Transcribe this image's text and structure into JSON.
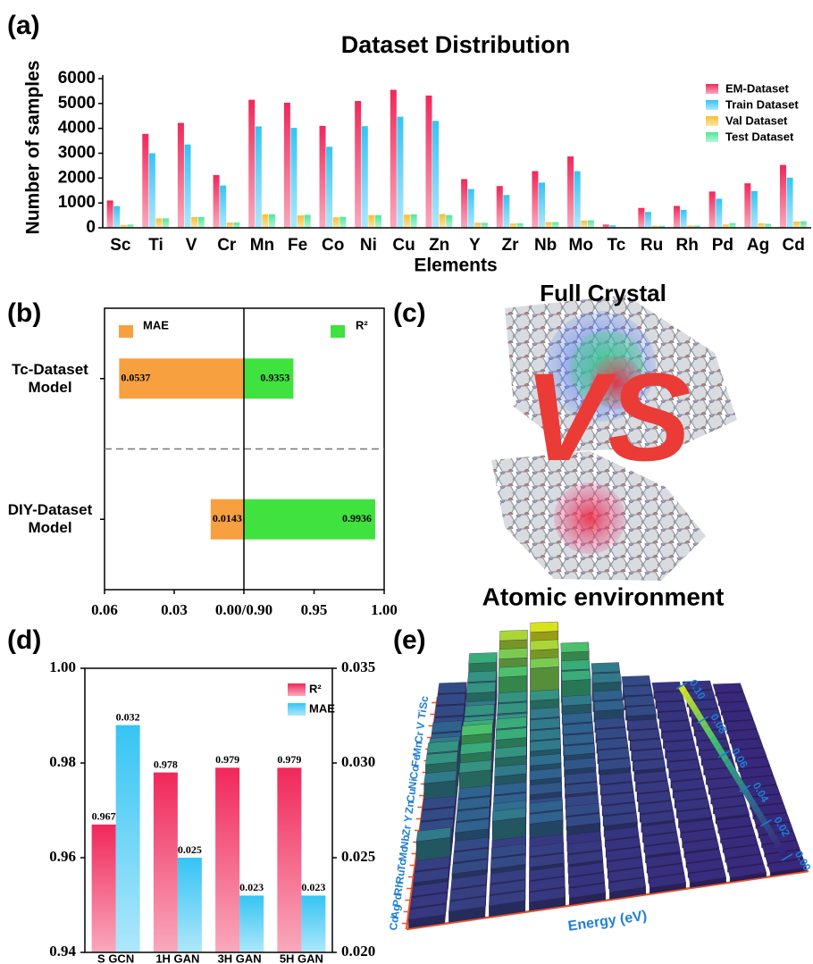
{
  "chart_data": [
    {
      "type": "grouped_bar",
      "panel_label": "(a)",
      "title": "Dataset Distribution",
      "xlabel": "Elements",
      "ylabel": "Number of samples",
      "categories": [
        "Sc",
        "Ti",
        "V",
        "Cr",
        "Mn",
        "Fe",
        "Co",
        "Ni",
        "Cu",
        "Zn",
        "Y",
        "Zr",
        "Nb",
        "Mo",
        "Tc",
        "Ru",
        "Rh",
        "Pd",
        "Ag",
        "Cd"
      ],
      "series": [
        {
          "name": "EM-Dataset",
          "color": "#f0285a",
          "values": [
            1100,
            3780,
            4220,
            2120,
            5150,
            5030,
            4100,
            5100,
            5550,
            5320,
            1960,
            1680,
            2280,
            2870,
            130,
            800,
            880,
            1460,
            1790,
            2530
          ]
        },
        {
          "name": "Train Dataset",
          "color": "#35c4f4",
          "values": [
            870,
            3000,
            3350,
            1700,
            4080,
            4020,
            3260,
            4090,
            4470,
            4300,
            1560,
            1320,
            1820,
            2280,
            100,
            640,
            720,
            1170,
            1480,
            2020
          ]
        },
        {
          "name": "Val Dataset",
          "color": "#f6c033",
          "values": [
            110,
            380,
            430,
            210,
            540,
            500,
            420,
            510,
            530,
            550,
            200,
            170,
            230,
            290,
            15,
            80,
            90,
            130,
            180,
            250
          ]
        },
        {
          "name": "Test Dataset",
          "color": "#4fe69a",
          "values": [
            130,
            380,
            430,
            210,
            540,
            520,
            440,
            510,
            540,
            510,
            200,
            180,
            230,
            300,
            15,
            80,
            90,
            190,
            160,
            260
          ]
        }
      ],
      "ylim": [
        0,
        6000
      ],
      "yticks": [
        0,
        1000,
        2000,
        3000,
        4000,
        5000,
        6000
      ],
      "legend": "upper right"
    },
    {
      "type": "diverging_bar",
      "panel_label": "(b)",
      "categories": [
        "Tc-Dataset Model",
        "DIY-Dataset Model"
      ],
      "series": [
        {
          "name": "MAE",
          "color": "#f7a040",
          "values": [
            0.0537,
            0.0143
          ],
          "xlim": [
            0.06,
            0
          ],
          "xticks": [
            0.06,
            0.03,
            {
              "value": 0,
              "label": "0.00/0.90"
            }
          ]
        },
        {
          "name": "R²",
          "color": "#3fe23f",
          "values": [
            0.9353,
            0.9936
          ],
          "xlim": [
            0.9,
            1
          ],
          "xticks": [
            0.95,
            {
              "value": 1,
              "label": "1.00"
            }
          ]
        }
      ]
    },
    {
      "type": "dual_bar",
      "panel_label": "(d)",
      "categories": [
        "S GCN",
        "1H GAN",
        "3H GAN",
        "5H GAN"
      ],
      "series": [
        {
          "name": "R²",
          "color": "#f0285a",
          "values": [
            0.967,
            0.978,
            0.979,
            0.979
          ]
        },
        {
          "name": "MAE",
          "color": "#35c4f4",
          "axis": "y2",
          "values": [
            0.032,
            0.025,
            0.023,
            0.023
          ]
        }
      ],
      "ylim": [
        0.94,
        1
      ],
      "yticks": [
        0.94,
        0.96,
        0.98,
        {
          "value": 1,
          "label": "1.00"
        }
      ],
      "y2lim": [
        0.02,
        0.035
      ],
      "y2ticks": [
        {
          "value": 0.02,
          "label": "0.020"
        },
        0.025,
        {
          "value": 0.03,
          "label": "0.030"
        },
        0.035
      ],
      "legend": "upper right"
    },
    {
      "type": "heatmap3d",
      "panel_label": "(e)",
      "xlabel": "Energy (eV)",
      "categories": [
        "Sc",
        "Ti",
        "V",
        "Cr",
        "Mn",
        "Fe",
        "Co",
        "Ni",
        "Cu",
        "Zn",
        "Y",
        "Zr",
        "Nb",
        "Mo",
        "Tc",
        "Ru",
        "Rh",
        "Pd",
        "Ag",
        "Cd"
      ],
      "values": [
        [
          0.02,
          0.06,
          0.09,
          0.1,
          0.07,
          0.04,
          0.02,
          0.01,
          0.01,
          0.005
        ],
        [
          0.02,
          0.05,
          0.08,
          0.09,
          0.06,
          0.04,
          0.02,
          0.01,
          0.01,
          0.005
        ],
        [
          0.02,
          0.05,
          0.07,
          0.08,
          0.06,
          0.03,
          0.02,
          0.01,
          0.01,
          0.005
        ],
        [
          0.02,
          0.04,
          0.05,
          0.05,
          0.04,
          0.03,
          0.02,
          0.01,
          0.01,
          0.005
        ],
        [
          0.03,
          0.05,
          0.05,
          0.04,
          0.03,
          0.02,
          0.015,
          0.01,
          0.008,
          0.005
        ],
        [
          0.03,
          0.05,
          0.05,
          0.04,
          0.03,
          0.02,
          0.015,
          0.01,
          0.008,
          0.005
        ],
        [
          0.04,
          0.06,
          0.06,
          0.04,
          0.03,
          0.02,
          0.015,
          0.01,
          0.008,
          0.005
        ],
        [
          0.05,
          0.07,
          0.06,
          0.04,
          0.03,
          0.02,
          0.015,
          0.01,
          0.008,
          0.005
        ],
        [
          0.05,
          0.06,
          0.05,
          0.035,
          0.025,
          0.02,
          0.015,
          0.01,
          0.008,
          0.005
        ],
        [
          0.04,
          0.05,
          0.04,
          0.03,
          0.02,
          0.015,
          0.012,
          0.01,
          0.008,
          0.005
        ],
        [
          0.02,
          0.03,
          0.03,
          0.025,
          0.02,
          0.015,
          0.012,
          0.01,
          0.008,
          0.005
        ],
        [
          0.02,
          0.03,
          0.03,
          0.02,
          0.018,
          0.015,
          0.012,
          0.01,
          0.008,
          0.005
        ],
        [
          0.02,
          0.03,
          0.035,
          0.03,
          0.02,
          0.015,
          0.012,
          0.01,
          0.008,
          0.005
        ],
        [
          0.02,
          0.03,
          0.04,
          0.03,
          0.02,
          0.015,
          0.012,
          0.01,
          0.008,
          0.005
        ],
        [
          0.04,
          0.02,
          0.015,
          0.012,
          0.01,
          0.01,
          0.01,
          0.008,
          0.006,
          0.005
        ],
        [
          0.015,
          0.02,
          0.02,
          0.015,
          0.012,
          0.01,
          0.01,
          0.008,
          0.006,
          0.005
        ],
        [
          0.015,
          0.02,
          0.02,
          0.015,
          0.012,
          0.01,
          0.01,
          0.008,
          0.006,
          0.005
        ],
        [
          0.012,
          0.015,
          0.015,
          0.012,
          0.01,
          0.01,
          0.008,
          0.007,
          0.006,
          0.005
        ],
        [
          0.012,
          0.015,
          0.015,
          0.012,
          0.01,
          0.01,
          0.008,
          0.007,
          0.006,
          0.005
        ],
        [
          0.012,
          0.015,
          0.015,
          0.012,
          0.01,
          0.01,
          0.008,
          0.007,
          0.006,
          0.005
        ]
      ],
      "clim": [
        0,
        0.1
      ],
      "cticks": [
        {
          "value": 0,
          "label": "0.00"
        },
        0.02,
        0.04,
        0.06,
        0.08,
        {
          "value": 0.1,
          "label": "0.10"
        }
      ],
      "colormap": [
        "#3a1c78",
        "#2e6a8e",
        "#3cbc74",
        "#d9e21c"
      ]
    }
  ],
  "illustration": {
    "panel_label": "(c)",
    "title": "Full Crystal",
    "vs": "VS",
    "caption": "Atomic environment"
  }
}
